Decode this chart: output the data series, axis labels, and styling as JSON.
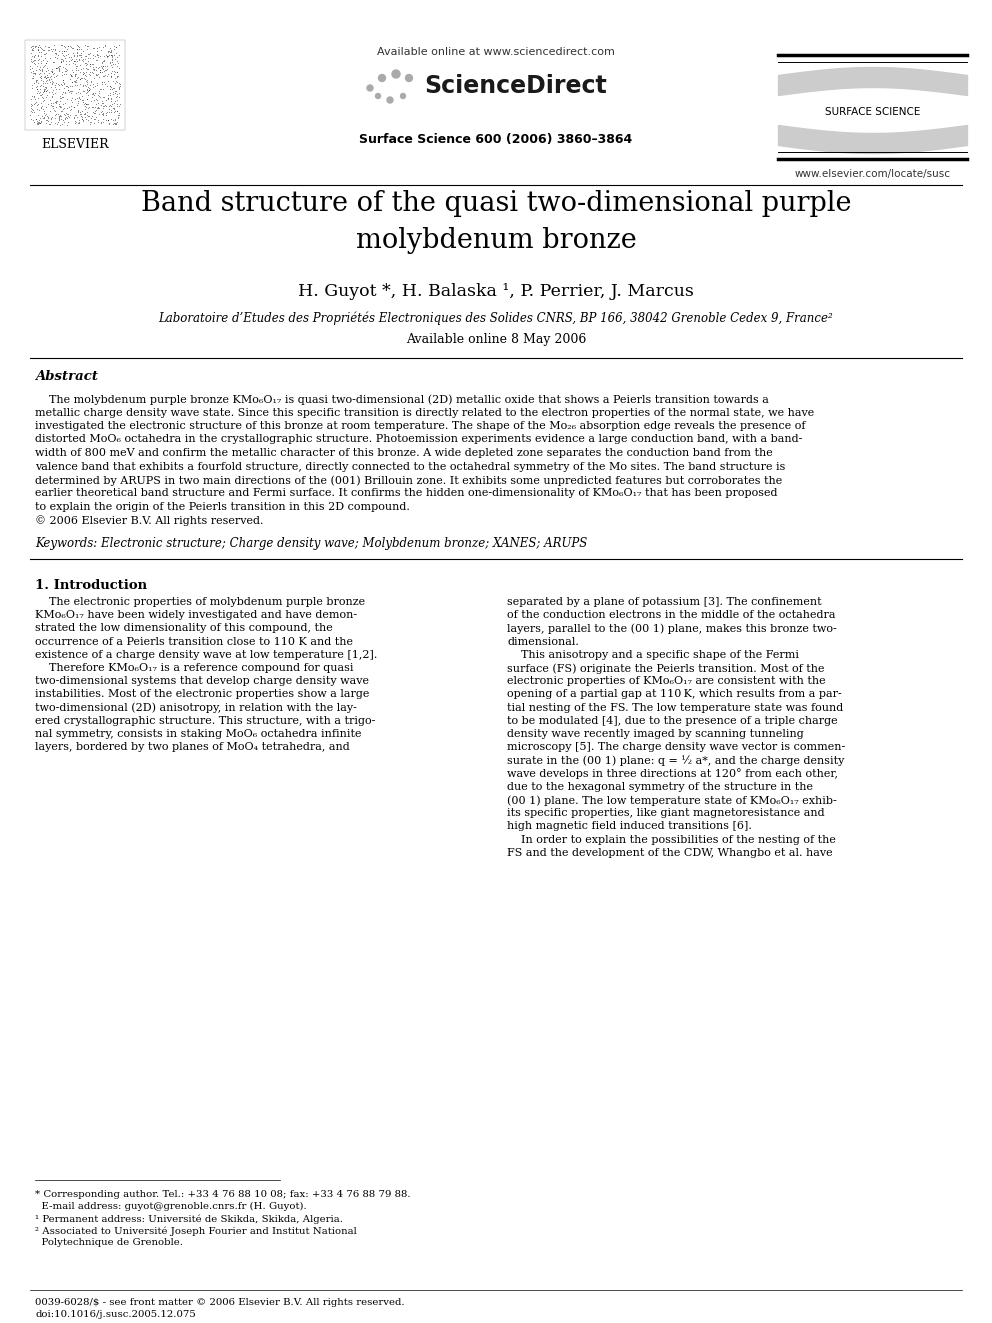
{
  "background_color": "#ffffff",
  "header": {
    "available_online": "Available online at www.sciencedirect.com",
    "journal_name": "ScienceDirect",
    "surface_science_label": "SURFACE SCIENCE",
    "journal_info": "Surface Science 600 (2006) 3860–3864",
    "url": "www.elsevier.com/locate/susc",
    "elsevier_label": "ELSEVIER"
  },
  "title": "Band structure of the quasi two-dimensional purple\nmolybdenum bronze",
  "authors": "H. Guyot *, H. Balaska ¹, P. Perrier, J. Marcus",
  "affiliation": "Laboratoire d’Etudes des Propriétés Electroniques des Solides CNRS, BP 166, 38042 Grenoble Cedex 9, France²",
  "available_online_date": "Available online 8 May 2006",
  "abstract_title": "Abstract",
  "keywords": "Keywords: Electronic structure; Charge density wave; Molybdenum bronze; XANES; ARUPS",
  "section1_title": "1. Introduction",
  "footnotes_line1": "* Corresponding author. Tel.: +33 4 76 88 10 08; fax: +33 4 76 88 79 88.",
  "footnotes_line2": "  E-mail address: guyot@grenoble.cnrs.fr (H. Guyot).",
  "footnotes_line3": "¹ Permanent address: Université de Skikda, Skikda, Algeria.",
  "footnotes_line4": "² Associated to Université Joseph Fourier and Institut National",
  "footnotes_line5": "  Polytechnique de Grenoble.",
  "bottom_line1": "0039-6028/$ - see front matter © 2006 Elsevier B.V. All rights reserved.",
  "bottom_line2": "doi:10.1016/j.susc.2005.12.075"
}
